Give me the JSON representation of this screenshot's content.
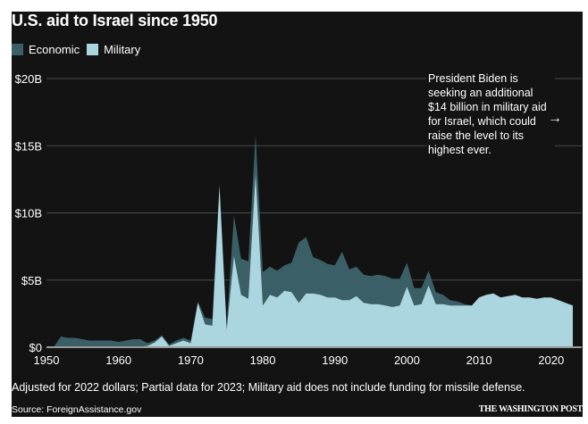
{
  "colors": {
    "background": "#131313",
    "economic": "#3b5f66",
    "military": "#acd6df",
    "gridline": "#4a4a4a",
    "baseline": "#9a9a9a",
    "text": "#ffffff"
  },
  "chart_data": {
    "type": "area",
    "stacked": true,
    "title": "U.S. aid to Israel since 1950",
    "xlabel": "",
    "ylabel": "",
    "xlim": [
      1950,
      2023
    ],
    "ylim": [
      0,
      20
    ],
    "y_unit": "billions USD (2022 dollars)",
    "y_ticks": [
      0,
      5,
      10,
      15,
      20
    ],
    "y_tick_labels": [
      "$0",
      "$5B",
      "$10B",
      "$15B",
      "$20B"
    ],
    "x_ticks": [
      1950,
      1960,
      1970,
      1980,
      1990,
      2000,
      2010,
      2020
    ],
    "x_tick_labels": [
      "1950",
      "1960",
      "1970",
      "1980",
      "1990",
      "2000",
      "2010",
      "2020"
    ],
    "grid": true,
    "legend": {
      "placement": "top-left",
      "entries": [
        "Economic",
        "Military"
      ]
    },
    "x": [
      1951,
      1952,
      1953,
      1954,
      1955,
      1956,
      1957,
      1958,
      1959,
      1960,
      1961,
      1962,
      1963,
      1964,
      1965,
      1966,
      1967,
      1968,
      1969,
      1970,
      1971,
      1972,
      1973,
      1974,
      1975,
      1976,
      1977,
      1978,
      1979,
      1980,
      1981,
      1982,
      1983,
      1984,
      1985,
      1986,
      1987,
      1988,
      1989,
      1990,
      1991,
      1992,
      1993,
      1994,
      1995,
      1996,
      1997,
      1998,
      1999,
      2000,
      2001,
      2002,
      2003,
      2004,
      2005,
      2006,
      2007,
      2008,
      2009,
      2010,
      2011,
      2012,
      2013,
      2014,
      2015,
      2016,
      2017,
      2018,
      2019,
      2020,
      2021,
      2022,
      2023
    ],
    "series": [
      {
        "name": "Military",
        "values": [
          0,
          0,
          0,
          0,
          0,
          0,
          0,
          0,
          0,
          0,
          0,
          0,
          0.05,
          0.1,
          0.35,
          0.8,
          0.1,
          0.3,
          0.5,
          0.3,
          3.3,
          1.7,
          1.6,
          12.0,
          1.3,
          6.8,
          3.9,
          3.6,
          12.9,
          3.1,
          3.9,
          3.7,
          4.2,
          4.1,
          3.3,
          4.0,
          4.0,
          3.9,
          3.7,
          3.7,
          3.5,
          3.5,
          3.8,
          3.3,
          3.2,
          3.2,
          3.1,
          3.0,
          3.1,
          4.5,
          3.1,
          3.2,
          4.6,
          3.2,
          3.2,
          3.1,
          3.1,
          3.1,
          3.1,
          3.7,
          3.9,
          4.0,
          3.7,
          3.8,
          3.9,
          3.7,
          3.7,
          3.6,
          3.7,
          3.7,
          3.5,
          3.3,
          3.1
        ]
      },
      {
        "name": "Economic",
        "values": [
          0,
          0.8,
          0.7,
          0.7,
          0.6,
          0.5,
          0.5,
          0.5,
          0.5,
          0.4,
          0.5,
          0.6,
          0.55,
          0.2,
          0.15,
          0.1,
          0.1,
          0.2,
          0.2,
          0.2,
          0.1,
          0.5,
          0.5,
          0.2,
          0.3,
          3.0,
          2.7,
          2.8,
          2.9,
          2.5,
          2.1,
          2.0,
          1.9,
          2.2,
          4.5,
          4.2,
          2.7,
          2.6,
          2.5,
          2.4,
          3.6,
          2.3,
          2.2,
          2.1,
          2.1,
          2.2,
          2.2,
          2.1,
          2.0,
          1.8,
          1.3,
          1.2,
          1.1,
          0.9,
          0.7,
          0.4,
          0.3,
          0.1,
          0,
          0,
          0,
          0,
          0,
          0,
          0,
          0,
          0,
          0,
          0,
          0,
          0,
          0,
          0
        ]
      }
    ],
    "annotation": "President Biden is seeking an additional $14 billion in military aid for Israel, which could raise the level to its highest ever."
  },
  "header": {
    "title": "U.S. aid to Israel since 1950"
  },
  "legend": {
    "items": [
      {
        "label": "Economic"
      },
      {
        "label": "Military"
      }
    ]
  },
  "annotation": {
    "text": "President Biden is seeking an additional $14 billion in military aid for Israel, which could raise the level to its highest ever.",
    "arrow_icon": "→"
  },
  "footer": {
    "note": "Adjusted for 2022 dollars; Partial data for 2023; Military aid does not include funding for missile defense.",
    "source": "Source: ForeignAssistance.gov",
    "brand": "THE WASHINGTON POST"
  }
}
